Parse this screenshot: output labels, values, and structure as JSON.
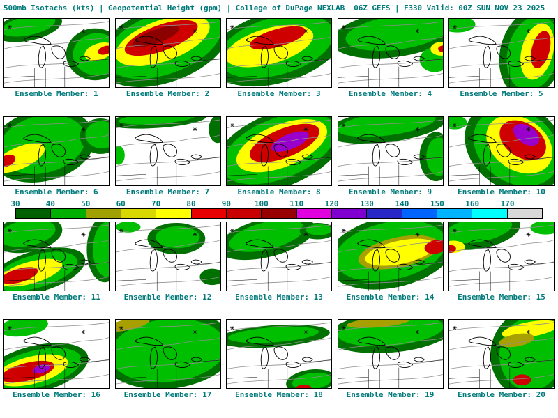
{
  "header": {
    "title": "500mb Isotachs (kts) | Geopotential Height (gpm) | College of DuPage NEXLAB  06Z GEFS | F330 Valid: 00Z SUN NOV 23 2025"
  },
  "colorbar": {
    "ticks": [
      "30",
      "40",
      "50",
      "60",
      "70",
      "80",
      "90",
      "100",
      "110",
      "120",
      "130",
      "140",
      "150",
      "160",
      "170"
    ],
    "segments": [
      "#006000",
      "#00b000",
      "#a0a000",
      "#d8d800",
      "#ffff00",
      "#e80000",
      "#c80000",
      "#980000",
      "#e000e0",
      "#8000d0",
      "#2828c8",
      "#0064ff",
      "#00b4ff",
      "#00ffff",
      "#d8d8d8"
    ]
  },
  "palette": {
    "dg": "#007000",
    "g": "#00bf00",
    "t": "#a8a000",
    "y": "#ffff00",
    "r": "#cf0000",
    "drd": "#8c0000",
    "p": "#9900cc"
  },
  "panels": [
    {
      "label": "Ensemble Member: 1",
      "blobs": [
        [
          "dg",
          35,
          12,
          50,
          20,
          -12
        ],
        [
          "g",
          35,
          10,
          40,
          14,
          -12
        ],
        [
          "dg",
          132,
          52,
          42,
          38,
          0
        ],
        [
          "g",
          135,
          52,
          35,
          31,
          0
        ],
        [
          "y",
          138,
          48,
          22,
          12,
          -18
        ],
        [
          "r",
          147,
          46,
          11,
          6,
          -18
        ]
      ]
    },
    {
      "label": "Ensemble Member: 2",
      "blobs": [
        [
          "dg",
          70,
          38,
          100,
          55,
          -20
        ],
        [
          "g",
          70,
          36,
          88,
          45,
          -20
        ],
        [
          "y",
          68,
          32,
          72,
          30,
          -20
        ],
        [
          "r",
          66,
          28,
          56,
          19,
          -20
        ],
        [
          "drd",
          58,
          26,
          36,
          10,
          -20
        ]
      ]
    },
    {
      "label": "Ensemble Member: 3",
      "blobs": [
        [
          "dg",
          72,
          42,
          100,
          52,
          -16
        ],
        [
          "g",
          72,
          40,
          86,
          42,
          -16
        ],
        [
          "y",
          62,
          40,
          66,
          26,
          -16
        ],
        [
          "r",
          74,
          28,
          42,
          13,
          -16
        ]
      ]
    },
    {
      "label": "Ensemble Member: 4",
      "blobs": [
        [
          "dg",
          82,
          22,
          92,
          34,
          -8
        ],
        [
          "g",
          86,
          20,
          76,
          25,
          -8
        ],
        [
          "g",
          140,
          60,
          22,
          18,
          0
        ],
        [
          "y",
          149,
          44,
          15,
          10,
          0
        ],
        [
          "r",
          153,
          44,
          8,
          5,
          0
        ]
      ]
    },
    {
      "label": "Ensemble Member: 5",
      "blobs": [
        [
          "g",
          12,
          8,
          26,
          12,
          0
        ],
        [
          "dg",
          120,
          50,
          46,
          66,
          14
        ],
        [
          "g",
          122,
          50,
          37,
          56,
          14
        ],
        [
          "y",
          128,
          48,
          23,
          42,
          14
        ],
        [
          "r",
          133,
          45,
          13,
          28,
          14
        ]
      ]
    },
    {
      "label": "Ensemble Member: 6",
      "blobs": [
        [
          "dg",
          55,
          42,
          78,
          52,
          -14
        ],
        [
          "g",
          55,
          40,
          64,
          42,
          -14
        ],
        [
          "dg",
          140,
          28,
          30,
          26,
          0
        ],
        [
          "g",
          142,
          26,
          24,
          20,
          0
        ],
        [
          "y",
          22,
          60,
          40,
          16,
          -24
        ],
        [
          "r",
          4,
          64,
          13,
          8,
          -24
        ]
      ]
    },
    {
      "label": "Ensemble Member: 7",
      "blobs": [
        [
          "dg",
          60,
          4,
          72,
          12,
          -4
        ],
        [
          "g",
          60,
          2,
          56,
          8,
          -4
        ],
        [
          "dg",
          148,
          18,
          13,
          20,
          0
        ],
        [
          "g",
          4,
          56,
          9,
          14,
          0
        ]
      ]
    },
    {
      "label": "Ensemble Member: 8",
      "blobs": [
        [
          "dg",
          76,
          48,
          100,
          54,
          -22
        ],
        [
          "g",
          76,
          46,
          88,
          44,
          -22
        ],
        [
          "y",
          80,
          42,
          70,
          31,
          -22
        ],
        [
          "r",
          84,
          38,
          54,
          21,
          -22
        ],
        [
          "p",
          92,
          36,
          29,
          11,
          -22
        ]
      ]
    },
    {
      "label": "Ensemble Member: 9",
      "blobs": [
        [
          "dg",
          70,
          13,
          88,
          24,
          -7
        ],
        [
          "g",
          70,
          10,
          72,
          17,
          -7
        ],
        [
          "dg",
          142,
          58,
          24,
          36,
          0
        ],
        [
          "g",
          146,
          58,
          18,
          28,
          0
        ]
      ]
    },
    {
      "label": "Ensemble Member: 10",
      "blobs": [
        [
          "g",
          8,
          8,
          18,
          10,
          0
        ],
        [
          "dg",
          96,
          44,
          78,
          62,
          34
        ],
        [
          "g",
          98,
          44,
          67,
          52,
          34
        ],
        [
          "y",
          102,
          40,
          52,
          38,
          34
        ],
        [
          "r",
          107,
          34,
          37,
          25,
          34
        ],
        [
          "p",
          112,
          26,
          21,
          13,
          34
        ]
      ]
    },
    {
      "label": "Ensemble Member: 11",
      "blobs": [
        [
          "dg",
          33,
          18,
          52,
          26,
          -10
        ],
        [
          "g",
          33,
          16,
          42,
          19,
          -10
        ],
        [
          "dg",
          146,
          40,
          26,
          48,
          0
        ],
        [
          "g",
          149,
          40,
          20,
          40,
          0
        ],
        [
          "dg",
          48,
          72,
          72,
          30,
          -16
        ],
        [
          "g",
          46,
          72,
          62,
          24,
          -16
        ],
        [
          "y",
          38,
          74,
          48,
          16,
          -16
        ],
        [
          "r",
          22,
          78,
          28,
          10,
          -16
        ]
      ]
    },
    {
      "label": "Ensemble Member: 12",
      "blobs": [
        [
          "dg",
          88,
          24,
          42,
          23,
          0
        ],
        [
          "g",
          90,
          22,
          32,
          16,
          0
        ],
        [
          "g",
          18,
          7,
          18,
          8,
          0
        ],
        [
          "dg",
          140,
          80,
          18,
          12,
          0
        ]
      ]
    },
    {
      "label": "Ensemble Member: 13",
      "blobs": [
        [
          "dg",
          58,
          23,
          72,
          28,
          -14
        ],
        [
          "g",
          58,
          20,
          56,
          20,
          -14
        ],
        [
          "dg",
          132,
          13,
          26,
          12,
          0
        ],
        [
          "g",
          134,
          11,
          19,
          8,
          0
        ]
      ]
    },
    {
      "label": "Ensemble Member: 14",
      "blobs": [
        [
          "dg",
          76,
          44,
          95,
          52,
          -12
        ],
        [
          "g",
          76,
          42,
          82,
          42,
          -12
        ],
        [
          "t",
          88,
          44,
          60,
          22,
          -12
        ],
        [
          "y",
          90,
          44,
          52,
          17,
          -12
        ],
        [
          "r",
          142,
          36,
          17,
          10,
          -12
        ]
      ]
    },
    {
      "label": "Ensemble Member: 15",
      "blobs": [
        [
          "dg",
          42,
          13,
          62,
          26,
          -10
        ],
        [
          "g",
          42,
          11,
          50,
          18,
          -10
        ],
        [
          "g",
          140,
          8,
          22,
          10,
          0
        ],
        [
          "y",
          6,
          36,
          17,
          9,
          0
        ],
        [
          "r",
          1,
          39,
          9,
          6,
          0
        ]
      ]
    },
    {
      "label": "Ensemble Member: 16",
      "blobs": [
        [
          "g",
          28,
          10,
          36,
          14,
          -8
        ],
        [
          "dg",
          46,
          72,
          78,
          34,
          -14
        ],
        [
          "g",
          46,
          72,
          68,
          27,
          -14
        ],
        [
          "y",
          40,
          74,
          54,
          20,
          -14
        ],
        [
          "r",
          34,
          76,
          40,
          13,
          -14
        ],
        [
          "p",
          54,
          72,
          13,
          6,
          -14
        ]
      ]
    },
    {
      "label": "Ensemble Member: 17",
      "blobs": [
        [
          "dg",
          76,
          45,
          98,
          56,
          -6
        ],
        [
          "g",
          76,
          45,
          85,
          46,
          -6
        ],
        [
          "t",
          18,
          7,
          32,
          8,
          -12
        ]
      ]
    },
    {
      "label": "Ensemble Member: 18",
      "blobs": [
        [
          "dg",
          68,
          24,
          82,
          16,
          -4
        ],
        [
          "g",
          68,
          22,
          66,
          11,
          -4
        ],
        [
          "dg",
          122,
          90,
          36,
          17,
          -8
        ],
        [
          "g",
          124,
          90,
          29,
          12,
          -8
        ],
        [
          "r",
          112,
          100,
          11,
          5,
          0
        ]
      ]
    },
    {
      "label": "Ensemble Member: 19",
      "blobs": [
        [
          "dg",
          76,
          18,
          92,
          30,
          -5
        ],
        [
          "g",
          76,
          16,
          77,
          22,
          -5
        ],
        [
          "t",
          58,
          4,
          46,
          7,
          -5
        ]
      ]
    },
    {
      "label": "Ensemble Member: 20",
      "blobs": [
        [
          "dg",
          116,
          50,
          56,
          64,
          6
        ],
        [
          "g",
          119,
          50,
          46,
          54,
          6
        ],
        [
          "y",
          118,
          14,
          42,
          11,
          -10
        ],
        [
          "t",
          98,
          30,
          26,
          9,
          -10
        ],
        [
          "r",
          106,
          88,
          13,
          8,
          0
        ]
      ]
    }
  ]
}
